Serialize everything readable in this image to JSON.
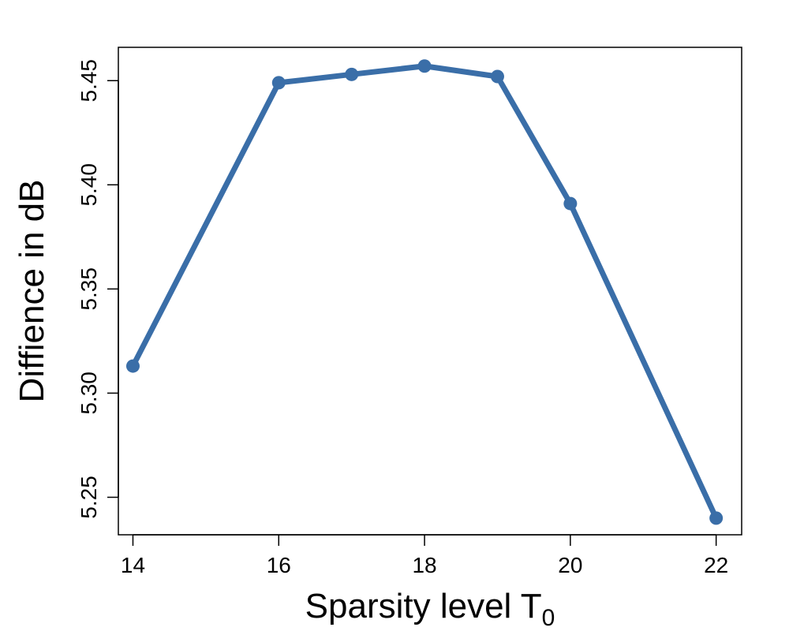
{
  "chart_data": {
    "type": "line",
    "xlabel": "Sparsity level T",
    "xlabel_subscript": "0",
    "ylabel": "Diffience in dB",
    "x": [
      14,
      16,
      17,
      18,
      19,
      20,
      22
    ],
    "series": [
      {
        "values": [
          5.313,
          5.449,
          5.453,
          5.457,
          5.452,
          5.391,
          5.24
        ]
      }
    ],
    "xticks": [
      14,
      16,
      18,
      20,
      22
    ],
    "yticks": [
      5.25,
      5.3,
      5.35,
      5.4,
      5.45
    ],
    "ytick_labels": [
      "5.25",
      "5.30",
      "5.35",
      "5.40",
      "5.45"
    ],
    "xlim": [
      13.8,
      22.35
    ],
    "ylim": [
      5.232,
      5.466
    ],
    "grid": false,
    "line_color": "#3A6EA8",
    "marker": "circle"
  }
}
